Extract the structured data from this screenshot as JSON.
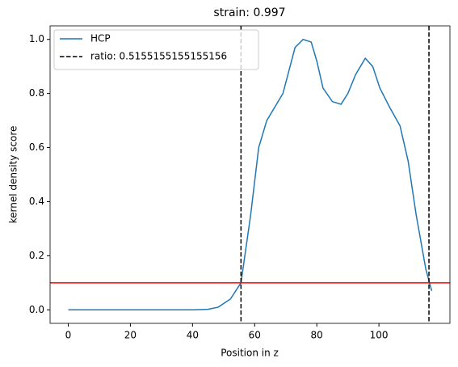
{
  "chart_data": {
    "type": "line",
    "title": "strain: 0.997",
    "xlabel": "Position in z",
    "ylabel": "kernel density score",
    "x": [
      0,
      10,
      20,
      30,
      40,
      45,
      48.3,
      52.2,
      55.6,
      58.7,
      61.3,
      63.9,
      66.5,
      69.1,
      73,
      75.6,
      78.2,
      80,
      82,
      85,
      87.8,
      90,
      92.5,
      95.6,
      98,
      100.3,
      103.4,
      106.8,
      109.4,
      112,
      115.1,
      117
    ],
    "series": [
      {
        "name": "HCP",
        "color": "#1f77b4",
        "values": [
          0,
          0,
          0,
          0,
          0,
          0.002,
          0.01,
          0.04,
          0.1,
          0.35,
          0.6,
          0.7,
          0.75,
          0.8,
          0.97,
          1.0,
          0.99,
          0.92,
          0.82,
          0.77,
          0.76,
          0.8,
          0.87,
          0.93,
          0.9,
          0.82,
          0.75,
          0.68,
          0.55,
          0.35,
          0.15,
          0.07
        ]
      }
    ],
    "vlines": {
      "name": "ratio: 0.5155155155155156",
      "color": "#000000",
      "x": [
        55.6,
        116.1
      ]
    },
    "hline": {
      "y": 0.1,
      "color": "#ff0000"
    },
    "xlim": [
      -5.85,
      122.85
    ],
    "ylim": [
      -0.05,
      1.05
    ],
    "xticks": [
      0,
      20,
      40,
      60,
      80,
      100
    ],
    "yticks": [
      {
        "value": 0,
        "label": "0.0"
      },
      {
        "value": 0.2,
        "label": "0.2"
      },
      {
        "value": 0.4,
        "label": "0.4"
      },
      {
        "value": 0.6,
        "label": "0.6"
      },
      {
        "value": 0.8,
        "label": "0.8"
      },
      {
        "value": 1.0,
        "label": "1.0"
      }
    ],
    "legend": "upper left"
  }
}
